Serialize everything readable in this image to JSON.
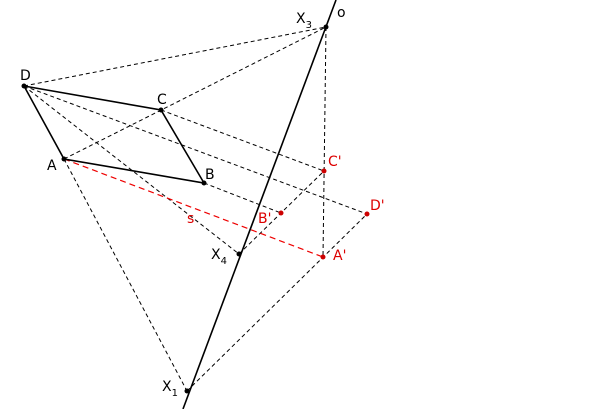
{
  "labels": {
    "o": "o",
    "X3": {
      "label": "X",
      "sub": "3"
    },
    "X4": {
      "label": "X",
      "sub": "4"
    },
    "X1": {
      "label": "X",
      "sub": "1"
    },
    "D": "D",
    "C": "C",
    "A": "A",
    "B": "B",
    "C_": "C'",
    "B_": "B'",
    "D_": "D'",
    "A_": "A'",
    "s": "s"
  }
}
